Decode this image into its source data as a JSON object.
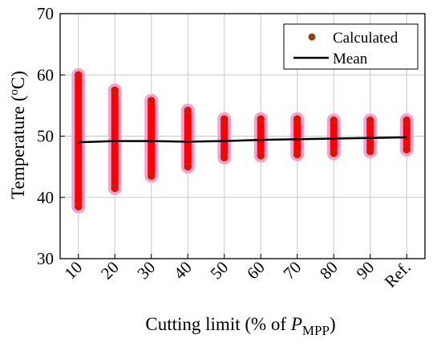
{
  "chart_data": {
    "type": "scatter",
    "categories": [
      "10",
      "20",
      "30",
      "40",
      "50",
      "60",
      "70",
      "80",
      "90",
      "Ref."
    ],
    "ylim": [
      30,
      70
    ],
    "yticks": [
      30,
      40,
      50,
      60,
      70
    ],
    "grid": true,
    "legend_placement": "top-right",
    "ylabel_main": "Temperature (",
    "ylabel_sup": "o",
    "ylabel_unit": "C)",
    "xlabel_main": "Cutting limit (% of ",
    "xlabel_var": "P",
    "xlabel_sub": "MPP",
    "xlabel_close": ")",
    "series": [
      {
        "name": "Calculated",
        "kind": "points",
        "color": "#8B4513",
        "highlight": "#ff0000",
        "halo": "#ff9ecf",
        "ranges": [
          {
            "min": 38.5,
            "max": 60.0
          },
          {
            "min": 41.5,
            "max": 57.5
          },
          {
            "min": 43.5,
            "max": 55.8
          },
          {
            "min": 45.0,
            "max": 54.2
          },
          {
            "min": 46.5,
            "max": 52.8
          },
          {
            "min": 46.8,
            "max": 52.8
          },
          {
            "min": 47.0,
            "max": 52.8
          },
          {
            "min": 47.2,
            "max": 52.6
          },
          {
            "min": 47.5,
            "max": 52.6
          },
          {
            "min": 47.8,
            "max": 52.6
          }
        ]
      },
      {
        "name": "Mean",
        "kind": "line",
        "color": "#000000",
        "values": [
          49.0,
          49.2,
          49.2,
          49.1,
          49.2,
          49.4,
          49.5,
          49.6,
          49.7,
          49.8
        ]
      }
    ]
  }
}
